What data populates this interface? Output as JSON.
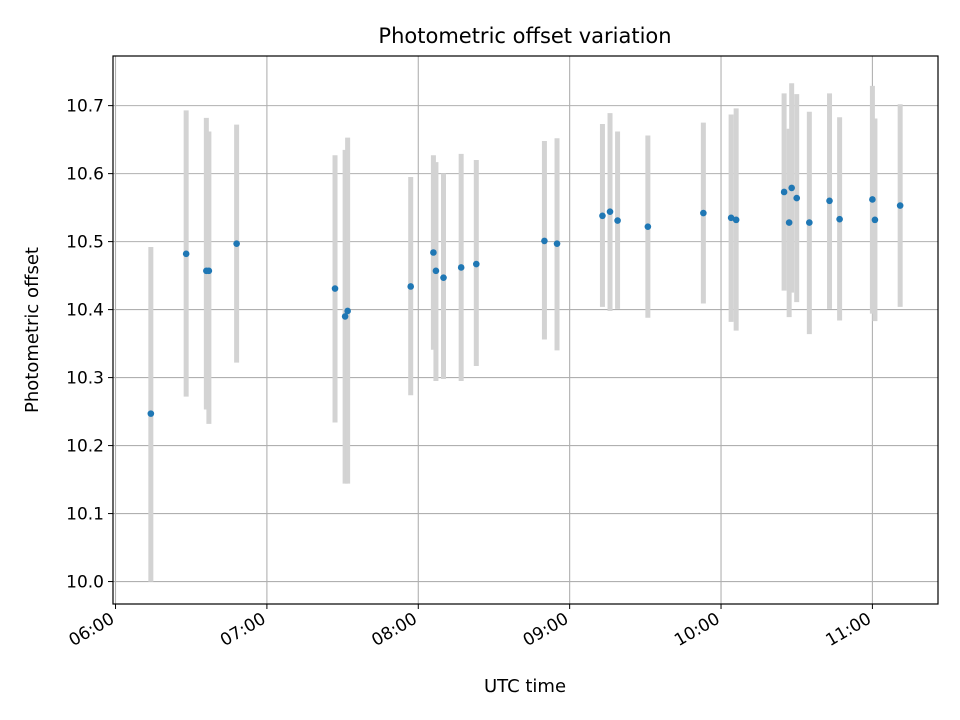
{
  "chart_data": {
    "type": "scatter",
    "title": "Photometric offset variation",
    "xlabel": "UTC time",
    "ylabel": "Photometric offset",
    "x_ticks": [
      "06:00",
      "07:00",
      "08:00",
      "09:00",
      "10:00",
      "11:00"
    ],
    "y_ticks": [
      "10.0",
      "10.1",
      "10.2",
      "10.3",
      "10.4",
      "10.5",
      "10.6",
      "10.7"
    ],
    "xlim": [
      "05:59",
      "11:26"
    ],
    "ylim": [
      9.967,
      10.773
    ],
    "grid": true,
    "marker_color": "#1f77b4",
    "errorbar_color": "#d3d3d3",
    "points": [
      {
        "x": "06:14",
        "y": 10.247,
        "low": 10.0,
        "high": 10.492
      },
      {
        "x": "06:28",
        "y": 10.482,
        "low": 10.272,
        "high": 10.693
      },
      {
        "x": "06:36",
        "y": 10.457,
        "low": 10.253,
        "high": 10.682
      },
      {
        "x": "06:37",
        "y": 10.457,
        "low": 10.232,
        "high": 10.662
      },
      {
        "x": "06:48",
        "y": 10.497,
        "low": 10.322,
        "high": 10.672
      },
      {
        "x": "07:27",
        "y": 10.431,
        "low": 10.234,
        "high": 10.627
      },
      {
        "x": "07:31",
        "y": 10.39,
        "low": 10.144,
        "high": 10.635
      },
      {
        "x": "07:32",
        "y": 10.398,
        "low": 10.144,
        "high": 10.653
      },
      {
        "x": "07:57",
        "y": 10.434,
        "low": 10.274,
        "high": 10.595
      },
      {
        "x": "08:06",
        "y": 10.484,
        "low": 10.341,
        "high": 10.627
      },
      {
        "x": "08:07",
        "y": 10.457,
        "low": 10.295,
        "high": 10.617
      },
      {
        "x": "08:10",
        "y": 10.447,
        "low": 10.298,
        "high": 10.6
      },
      {
        "x": "08:17",
        "y": 10.462,
        "low": 10.295,
        "high": 10.629
      },
      {
        "x": "08:23",
        "y": 10.467,
        "low": 10.317,
        "high": 10.62
      },
      {
        "x": "08:50",
        "y": 10.501,
        "low": 10.356,
        "high": 10.648
      },
      {
        "x": "08:55",
        "y": 10.497,
        "low": 10.34,
        "high": 10.652
      },
      {
        "x": "09:13",
        "y": 10.538,
        "low": 10.404,
        "high": 10.673
      },
      {
        "x": "09:16",
        "y": 10.544,
        "low": 10.398,
        "high": 10.689
      },
      {
        "x": "09:19",
        "y": 10.531,
        "low": 10.401,
        "high": 10.662
      },
      {
        "x": "09:31",
        "y": 10.522,
        "low": 10.388,
        "high": 10.656
      },
      {
        "x": "09:53",
        "y": 10.542,
        "low": 10.409,
        "high": 10.675
      },
      {
        "x": "10:04",
        "y": 10.535,
        "low": 10.382,
        "high": 10.687
      },
      {
        "x": "10:06",
        "y": 10.532,
        "low": 10.369,
        "high": 10.696
      },
      {
        "x": "10:25",
        "y": 10.573,
        "low": 10.428,
        "high": 10.718
      },
      {
        "x": "10:27",
        "y": 10.528,
        "low": 10.389,
        "high": 10.666
      },
      {
        "x": "10:28",
        "y": 10.579,
        "low": 10.425,
        "high": 10.733
      },
      {
        "x": "10:30",
        "y": 10.564,
        "low": 10.411,
        "high": 10.717
      },
      {
        "x": "10:35",
        "y": 10.528,
        "low": 10.364,
        "high": 10.691
      },
      {
        "x": "10:43",
        "y": 10.56,
        "low": 10.401,
        "high": 10.718
      },
      {
        "x": "10:47",
        "y": 10.533,
        "low": 10.384,
        "high": 10.683
      },
      {
        "x": "11:00",
        "y": 10.562,
        "low": 10.394,
        "high": 10.729
      },
      {
        "x": "11:01",
        "y": 10.532,
        "low": 10.383,
        "high": 10.681
      },
      {
        "x": "11:11",
        "y": 10.553,
        "low": 10.404,
        "high": 10.702
      }
    ]
  }
}
